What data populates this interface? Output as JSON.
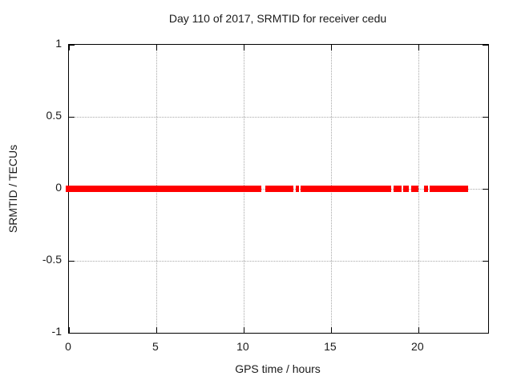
{
  "chart_data": {
    "type": "line",
    "title": "Day 110 of 2017, SRMTID for receiver cedu",
    "xlabel": "GPS time / hours",
    "ylabel": "SRMTID / TECUs",
    "xlim": [
      0,
      24
    ],
    "ylim": [
      -1,
      1
    ],
    "grid": true,
    "legend": false,
    "x_ticks": [
      0,
      5,
      10,
      15,
      20
    ],
    "x_tick_labels": [
      "0",
      "5",
      "10",
      "15",
      "20"
    ],
    "y_ticks": [
      -1,
      -0.5,
      0,
      0.5,
      1
    ],
    "y_tick_labels": [
      "-1",
      "-0.5",
      "0",
      "0.5",
      "1"
    ],
    "series": [
      {
        "name": "SRMTID",
        "value": 0,
        "note": "thick horizontal band of data points at y=0 with data gaps; extents in GPS hours",
        "segments_hours": [
          [
            0.0,
            11.0
          ],
          [
            11.25,
            12.85
          ],
          [
            13.0,
            13.15
          ],
          [
            13.25,
            18.45
          ],
          [
            18.6,
            19.05
          ],
          [
            19.15,
            19.45
          ],
          [
            19.6,
            20.0
          ],
          [
            20.35,
            20.55
          ],
          [
            20.65,
            22.85
          ]
        ]
      }
    ],
    "colors": {
      "series": "#ff0000",
      "grid": "#a8a8a8",
      "border": "#000000",
      "text": "#1a1a1a",
      "background": "#ffffff"
    }
  }
}
